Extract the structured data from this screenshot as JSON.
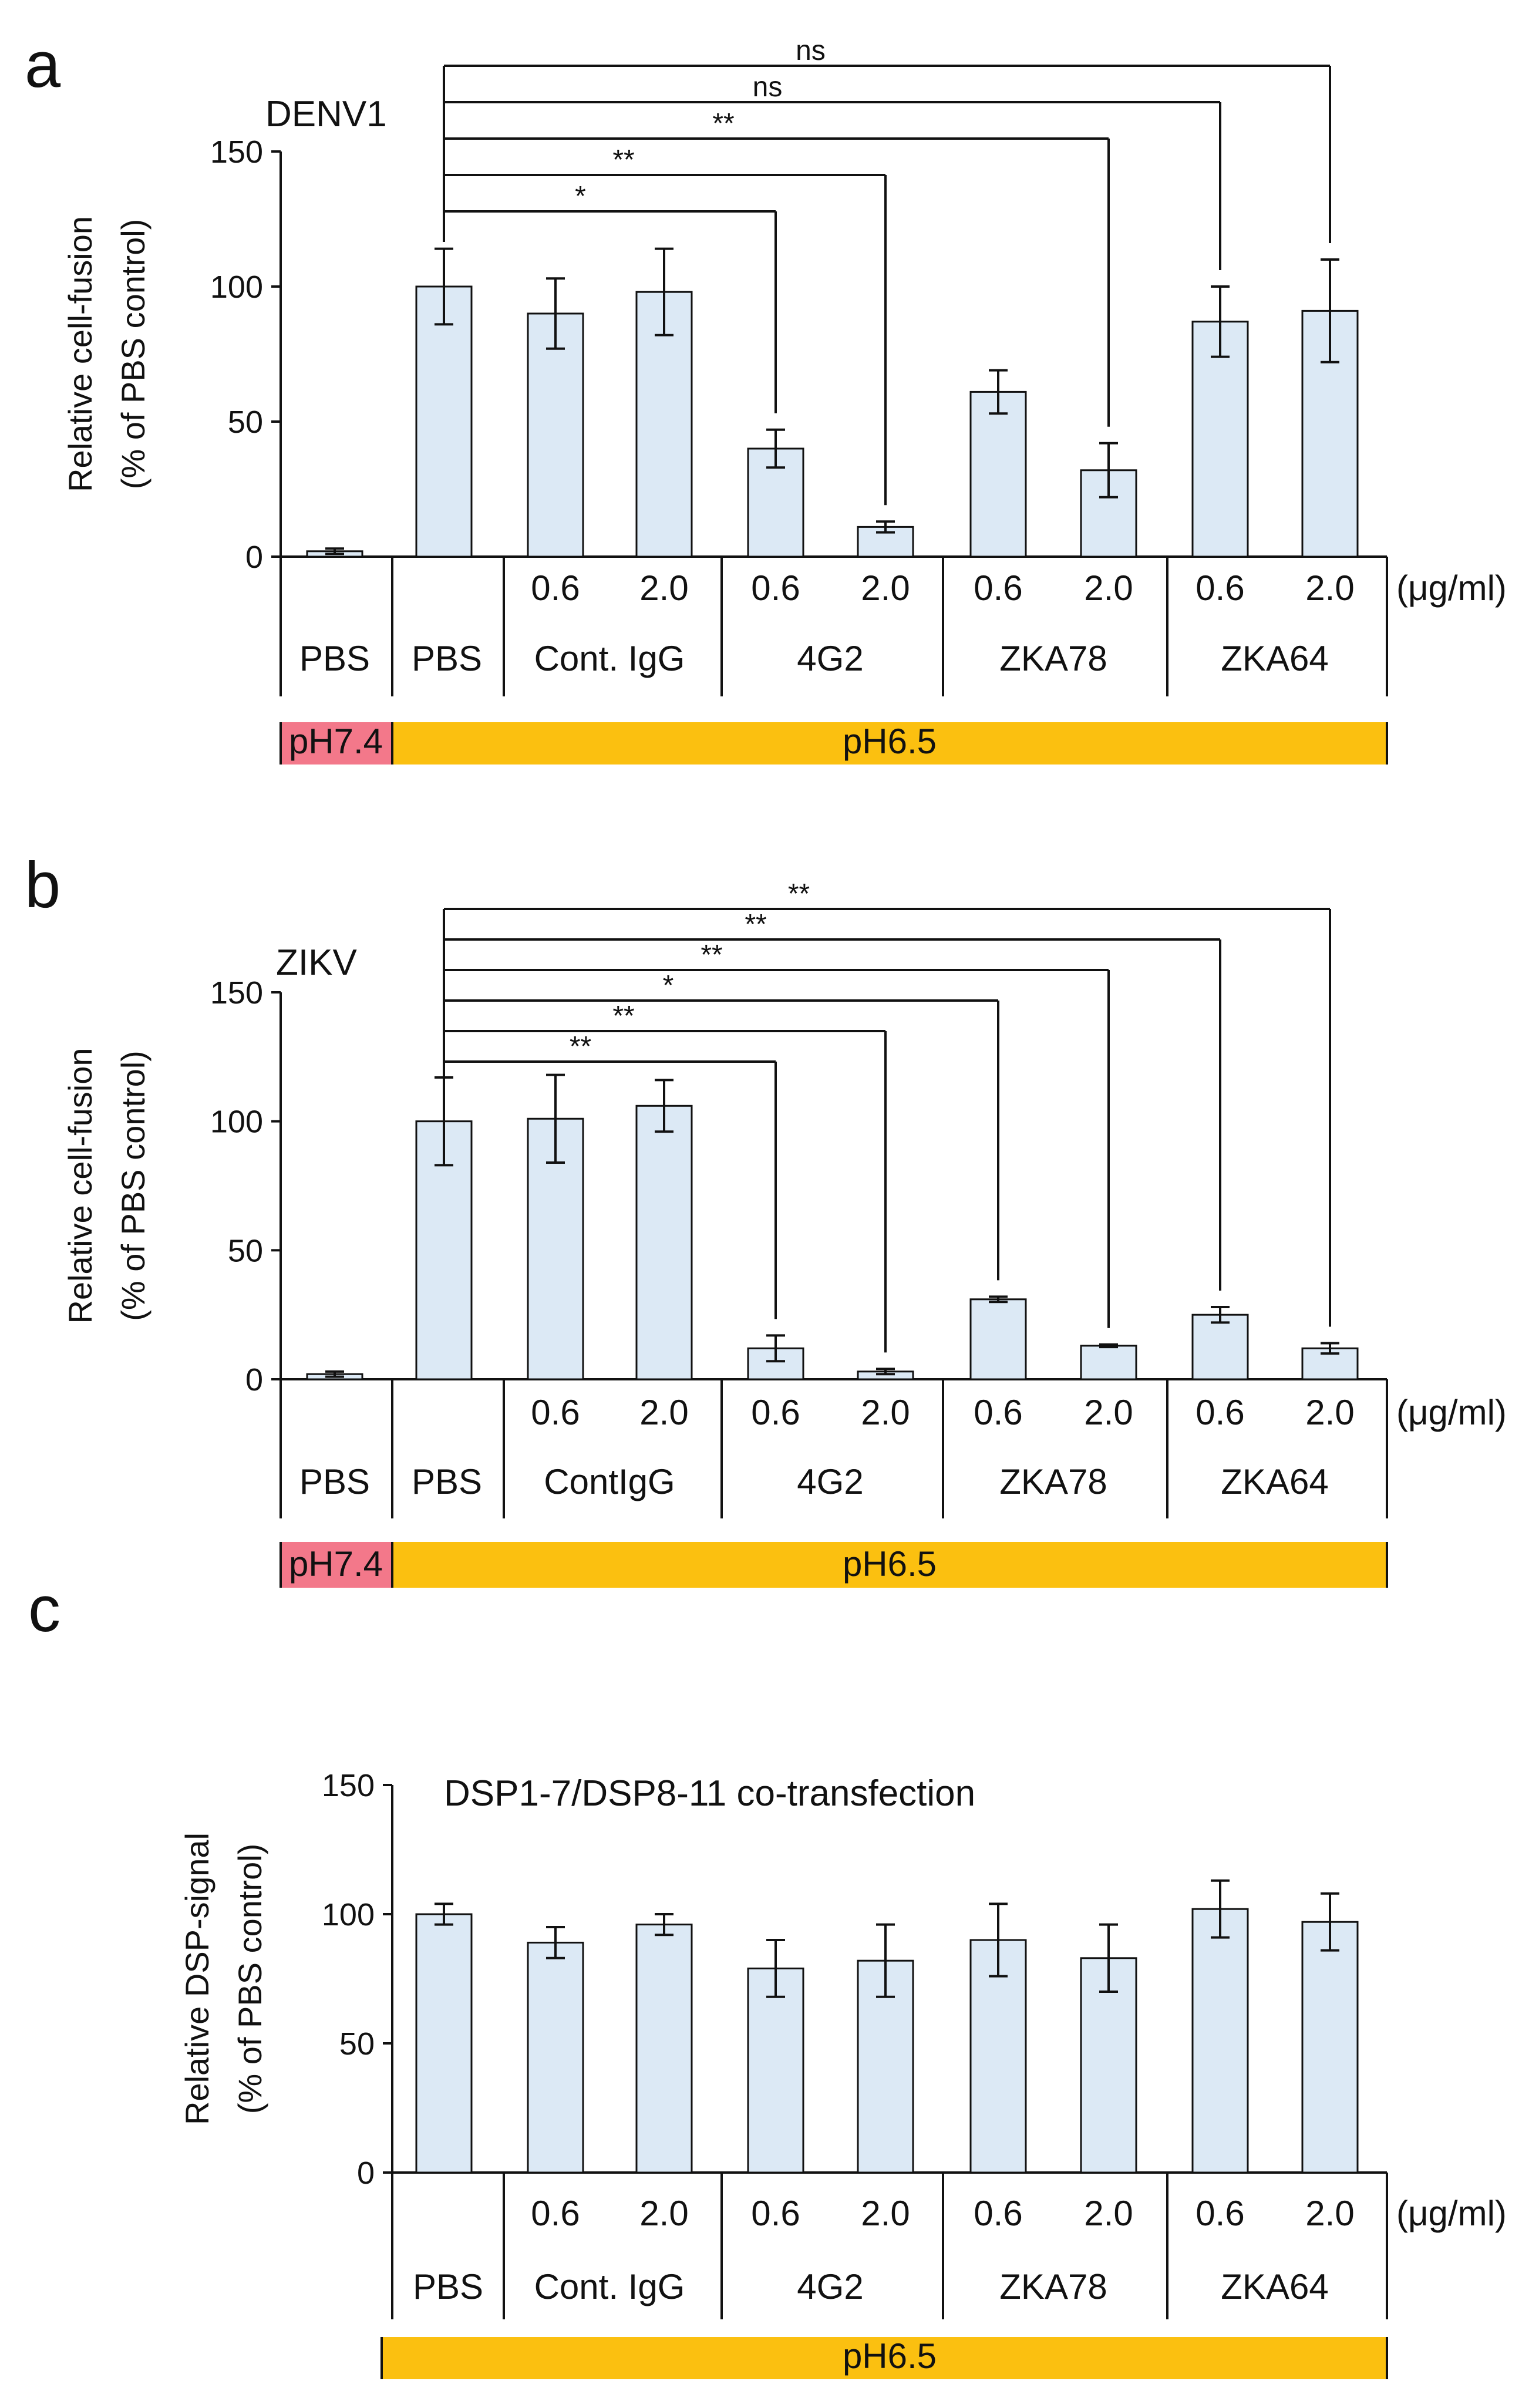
{
  "colors": {
    "bar_fill": "#dce9f5",
    "bar_stroke": "#111111",
    "ph74": "#f3788a",
    "ph65": "#fbc010",
    "ink": "#111111"
  },
  "unit_label": "(μg/ml)",
  "chart_data": [
    {
      "panel": "a",
      "type": "bar",
      "title": "DENV1",
      "ylabel_line1": "Relative cell-fusion",
      "ylabel_line2": "(% of PBS control)",
      "ylim": [
        0,
        150
      ],
      "yticks": [
        0,
        50,
        100,
        150
      ],
      "concentrations": [
        "",
        "",
        "0.6",
        "2.0",
        "0.6",
        "2.0",
        "0.6",
        "2.0",
        "0.6",
        "2.0"
      ],
      "groups": [
        "PBS",
        "PBS",
        "Cont. IgG",
        "4G2",
        "ZKA78",
        "ZKA64"
      ],
      "ph_labels": [
        "pH7.4",
        "pH6.5"
      ],
      "values": [
        2,
        100,
        90,
        98,
        40,
        11,
        61,
        32,
        87,
        91
      ],
      "errors": [
        1,
        14,
        13,
        16,
        7,
        2,
        8,
        10,
        13,
        19
      ],
      "significance": [
        {
          "to": 4,
          "label": "*"
        },
        {
          "to": 5,
          "label": "**"
        },
        {
          "to": 7,
          "label": "**"
        },
        {
          "to": 8,
          "label": "ns"
        },
        {
          "to": 9,
          "label": "ns"
        }
      ]
    },
    {
      "panel": "b",
      "type": "bar",
      "title": "ZIKV",
      "ylabel_line1": "Relative cell-fusion",
      "ylabel_line2": "(% of PBS control)",
      "ylim": [
        0,
        150
      ],
      "yticks": [
        0,
        50,
        100,
        150
      ],
      "concentrations": [
        "",
        "",
        "0.6",
        "2.0",
        "0.6",
        "2.0",
        "0.6",
        "2.0",
        "0.6",
        "2.0"
      ],
      "groups": [
        "PBS",
        "PBS",
        "ContIgG",
        "4G2",
        "ZKA78",
        "ZKA64"
      ],
      "ph_labels": [
        "pH7.4",
        "pH6.5"
      ],
      "values": [
        2,
        100,
        101,
        106,
        12,
        3,
        31,
        13,
        25,
        12
      ],
      "errors": [
        1,
        17,
        17,
        10,
        5,
        1,
        1,
        0.5,
        3,
        2
      ],
      "significance": [
        {
          "to": 4,
          "label": "**"
        },
        {
          "to": 5,
          "label": "**"
        },
        {
          "to": 6,
          "label": "*"
        },
        {
          "to": 7,
          "label": "**"
        },
        {
          "to": 8,
          "label": "**"
        },
        {
          "to": 9,
          "label": "**"
        }
      ]
    },
    {
      "panel": "c",
      "type": "bar",
      "title": "DSP1-7/DSP8-11 co-transfection",
      "ylabel_line1": "Relative DSP-signal",
      "ylabel_line2": "(% of PBS control)",
      "ylim": [
        0,
        150
      ],
      "yticks": [
        0,
        50,
        100,
        150
      ],
      "concentrations": [
        "",
        "0.6",
        "2.0",
        "0.6",
        "2.0",
        "0.6",
        "2.0",
        "0.6",
        "2.0"
      ],
      "groups": [
        "PBS",
        "Cont. IgG",
        "4G2",
        "ZKA78",
        "ZKA64"
      ],
      "ph_labels": [
        "pH6.5"
      ],
      "values": [
        100,
        89,
        96,
        79,
        82,
        90,
        83,
        102,
        97
      ],
      "errors": [
        4,
        6,
        4,
        11,
        14,
        14,
        13,
        11,
        11
      ],
      "significance": []
    }
  ]
}
